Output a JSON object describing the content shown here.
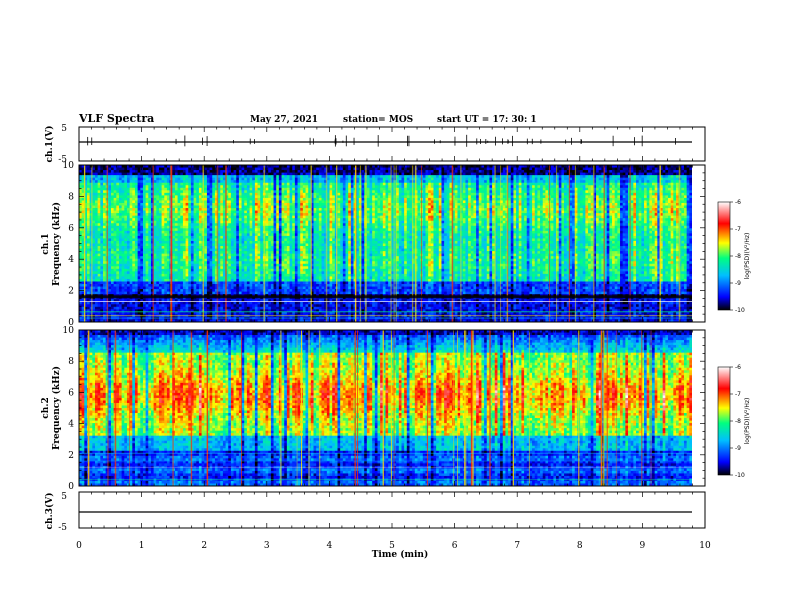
{
  "header": {
    "title": "VLF Spectra",
    "date": "May 27, 2021",
    "station": "station= MOS",
    "start": "start  UT  =    17: 30: 1"
  },
  "chart_data": [
    {
      "type": "line",
      "ylabel": "ch.1(V)",
      "ylim": [
        -5,
        5
      ],
      "ytick_labels": [
        "5",
        "-5"
      ],
      "trace": "flat near 0 with short spikes",
      "xlim": [
        0,
        10
      ]
    },
    {
      "type": "heatmap",
      "ylabel": "ch.1\nFrequency (kHz)",
      "ylabel_line1": "ch.1",
      "ylabel_line2": "Frequency  (kHz)",
      "ylim": [
        0,
        10
      ],
      "ytick_labels": [
        "0",
        "2",
        "4",
        "6",
        "8",
        "10"
      ],
      "xlim": [
        0,
        9.85
      ],
      "colorbar": {
        "label": "log(PSD)(V²/Hz)",
        "range": [
          -10,
          -6
        ],
        "tick_labels": [
          "-6",
          "-7",
          "-8",
          "-9",
          "-10"
        ]
      },
      "description_bands_khz": {
        "strong_band": [
          2.5,
          9.2
        ],
        "quiet_band": [
          0,
          1.6
        ]
      }
    },
    {
      "type": "heatmap",
      "ylabel": "ch.2\nFrequency (kHz)",
      "ylabel_line1": "ch.2",
      "ylabel_line2": "Frequency  (kHz)",
      "ylim": [
        0,
        10
      ],
      "ytick_labels": [
        "0",
        "2",
        "4",
        "6",
        "8",
        "10"
      ],
      "xlim": [
        0,
        9.85
      ],
      "colorbar": {
        "label": "log(PSD)(V²/Hz)",
        "range": [
          -10,
          -6
        ],
        "tick_labels": [
          "-6",
          "-7",
          "-8",
          "-9",
          "-10"
        ]
      },
      "description_bands_khz": {
        "strong_band": [
          3.5,
          8.0
        ],
        "quiet_band": [
          0,
          2.5
        ]
      }
    },
    {
      "type": "line",
      "ylabel": "ch.3(V)",
      "ylim": [
        -5,
        5
      ],
      "ytick_labels": [
        "5",
        "-5"
      ],
      "trace": "flat near 0",
      "xlim": [
        0,
        10
      ]
    }
  ],
  "xaxis": {
    "label": "Time  (min)",
    "range": [
      0,
      10
    ],
    "tick_labels": [
      "0",
      "1",
      "2",
      "3",
      "4",
      "5",
      "6",
      "7",
      "8",
      "9",
      "10"
    ]
  },
  "colors": {
    "frame": "#000000",
    "colormap": [
      "#000000",
      "#0000ff",
      "#00bfff",
      "#00ff80",
      "#ffff00",
      "#ff0000",
      "#ffffff"
    ]
  }
}
